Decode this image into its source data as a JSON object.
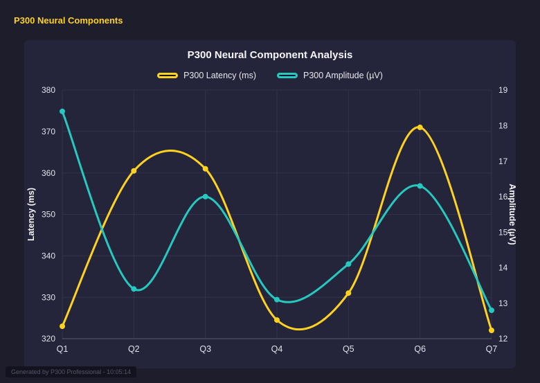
{
  "page": {
    "title": "P300 Neural Components",
    "footer": "Generated by P300 Professional - 10:05:14"
  },
  "colors": {
    "background": "#1d1d2b",
    "panel": "#24243a",
    "accent_yellow": "#ffd21f",
    "teal": "#26c9bf",
    "grid": "#32324a",
    "axis_line": "#5a5a70",
    "axis_text": "#e2e2ea",
    "title_text": "#f5f5f8"
  },
  "chart_data": {
    "type": "line",
    "title": "P300 Neural Component Analysis",
    "categories": [
      "Q1",
      "Q2",
      "Q3",
      "Q4",
      "Q5",
      "Q6",
      "Q7"
    ],
    "series": [
      {
        "name": "P300 Latency (ms)",
        "axis": "left",
        "color": "#ffd21f",
        "values": [
          323,
          360.5,
          361,
          324.5,
          331,
          371,
          322
        ]
      },
      {
        "name": "P300 Amplitude (µV)",
        "axis": "right",
        "color": "#26c9bf",
        "values": [
          18.4,
          13.4,
          16.0,
          13.1,
          14.1,
          16.3,
          12.8
        ]
      }
    ],
    "left_axis": {
      "label": "Latency (ms)",
      "min": 320,
      "max": 380,
      "step": 10
    },
    "right_axis": {
      "label": "Amplitude (µV)",
      "min": 12,
      "max": 19,
      "step": 1
    },
    "grid": true,
    "legend_position": "top",
    "line_style": "smooth",
    "markers": true
  }
}
